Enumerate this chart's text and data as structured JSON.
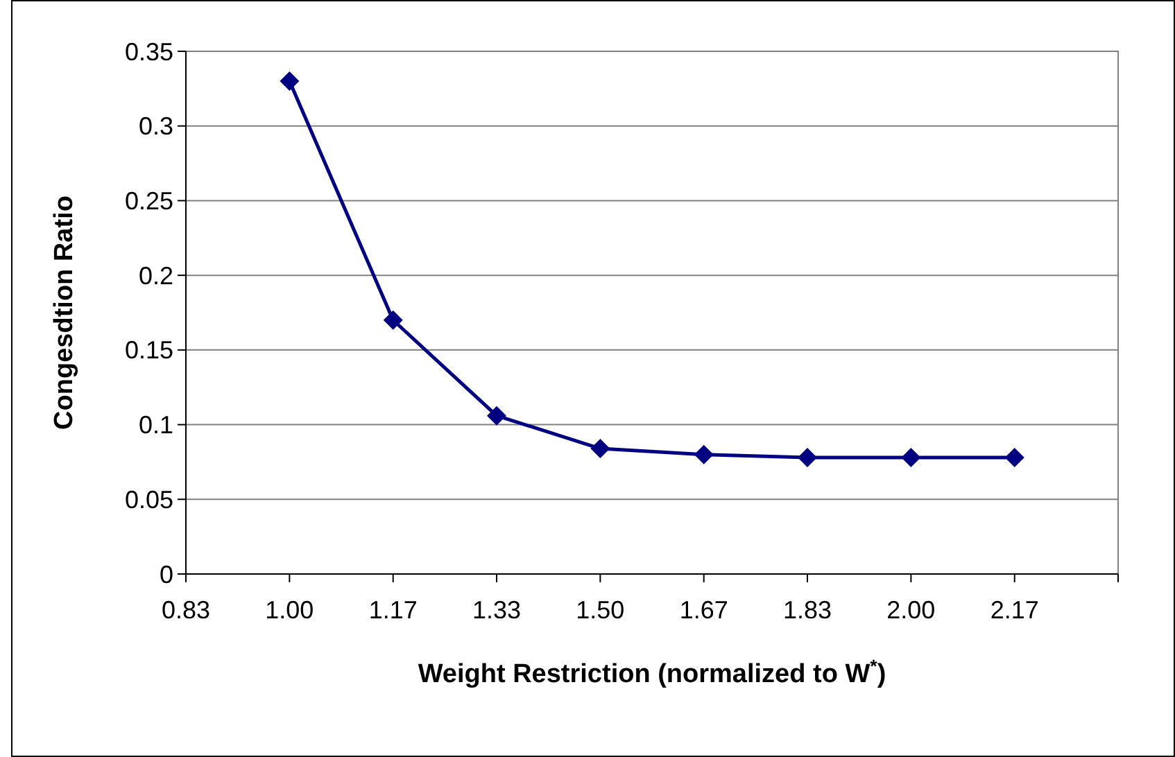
{
  "chart_data": {
    "type": "line",
    "xlabel": "Weight Restriction (normalized to W$^{*}$)",
    "ylabel": "Congesdtion Ratio",
    "x": [
      1.0,
      1.1667,
      1.3333,
      1.5,
      1.6667,
      1.8333,
      2.0,
      2.1667
    ],
    "series": [
      {
        "color": "#000080",
        "values": [
          0.33,
          0.17,
          0.106,
          0.084,
          0.08,
          0.078,
          0.078,
          0.078
        ]
      }
    ],
    "xlim": [
      0.8333,
      2.3333
    ],
    "xticks": [
      {
        "value": 0.8333,
        "label": "0.83"
      },
      {
        "value": 1.0,
        "label": "1.00"
      },
      {
        "value": 1.1667,
        "label": "1.17"
      },
      {
        "value": 1.3333,
        "label": "1.33"
      },
      {
        "value": 1.5,
        "label": "1.50"
      },
      {
        "value": 1.6667,
        "label": "1.67"
      },
      {
        "value": 1.8333,
        "label": "1.83"
      },
      {
        "value": 2.0,
        "label": "2.00"
      },
      {
        "value": 2.1667,
        "label": "2.17"
      },
      {
        "value": 2.3333,
        "label": null
      }
    ],
    "ylim": [
      0,
      0.35
    ],
    "yticks": [
      0,
      0.05,
      0.1,
      0.15,
      0.2,
      0.25,
      0.3,
      0.35
    ],
    "grid": "y",
    "marker": "diamond",
    "line_style": "solid"
  }
}
